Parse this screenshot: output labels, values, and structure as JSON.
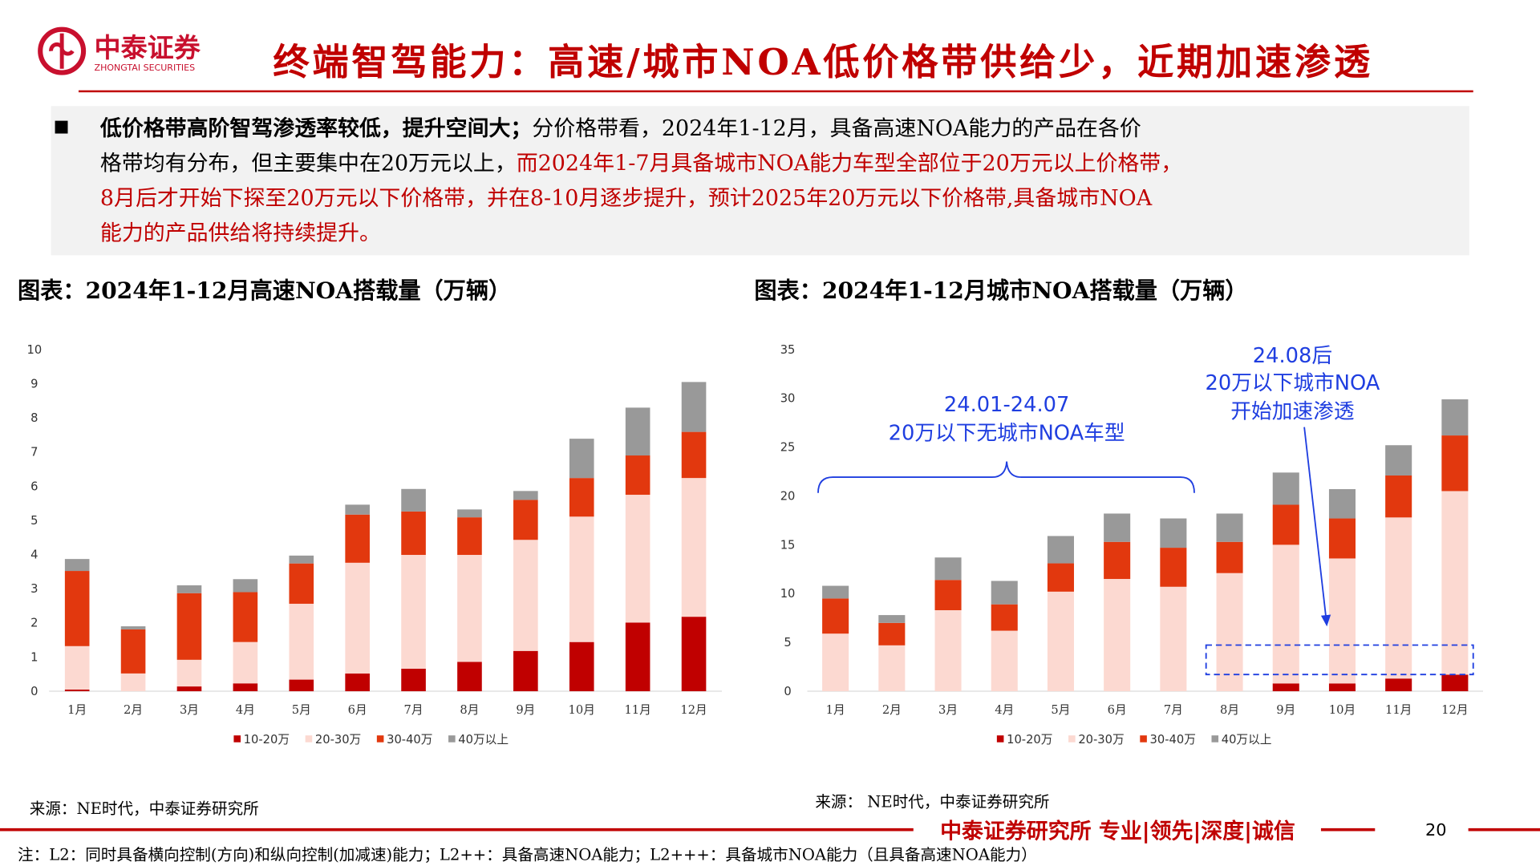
{
  "header": {
    "logo": "中泰证券",
    "logo_en": "ZHONGTAI SECURITIES",
    "title": "终端智驾能力：高速/城市NOA低价格带供给少，近期加速渗透"
  },
  "bullet": {
    "lines": [
      [
        {
          "text": "低价格带高阶智驾渗透率较低，提升空间大；",
          "color": "#000000",
          "bold": true
        },
        {
          "text": "分价格带看，2024年1-12月，具备高速NOA能力的产品在各价",
          "color": "#000000"
        }
      ],
      [
        {
          "text": "格带均有分布，但主要集中在20万元以上，",
          "color": "#000000"
        },
        {
          "text": "而2024年1-7月具备城市NOA能力车型全部位于20万元以上价格带，",
          "color": "#c00000"
        }
      ],
      [
        {
          "text": "8月后才开始下探至20万元以下价格带，并在8-10月逐步提升，预计2025年20万元以下价格带,具备城市NOA",
          "color": "#c00000"
        }
      ],
      [
        {
          "text": "能力的产品供给将持续提升。",
          "color": "#c00000"
        }
      ]
    ]
  },
  "chart_data": [
    {
      "type": "stacked_bar",
      "title": "图表：2024年1-12月高速NOA搭载量（万辆）",
      "source": "来源：NE时代，中泰证券研究所",
      "categories": [
        "1月",
        "2月",
        "3月",
        "4月",
        "5月",
        "6月",
        "7月",
        "8月",
        "9月",
        "10月",
        "11月",
        "12月"
      ],
      "series": [
        {
          "name": "10-20万",
          "color": "#c00000",
          "values": [
            0.05,
            0,
            0.14,
            0.23,
            0.34,
            0.52,
            0.66,
            0.86,
            1.18,
            1.44,
            2.01,
            2.18
          ]
        },
        {
          "name": "20-30万",
          "color": "#fcd9d1",
          "values": [
            1.27,
            0.52,
            0.78,
            1.21,
            2.22,
            3.24,
            3.33,
            3.13,
            3.25,
            3.67,
            3.74,
            4.06
          ]
        },
        {
          "name": "30-40万",
          "color": "#e2380e",
          "values": [
            2.2,
            1.29,
            1.95,
            1.46,
            1.18,
            1.41,
            1.27,
            1.1,
            1.17,
            1.13,
            1.15,
            1.35
          ]
        },
        {
          "name": "40万以上",
          "color": "#999999",
          "values": [
            0.35,
            0.09,
            0.23,
            0.38,
            0.23,
            0.29,
            0.66,
            0.23,
            0.26,
            1.15,
            1.4,
            1.46
          ]
        }
      ],
      "ylim": [
        0,
        10
      ],
      "yticks": [
        0,
        1,
        2,
        3,
        4,
        5,
        6,
        7,
        8,
        9,
        10
      ]
    },
    {
      "type": "stacked_bar",
      "title": "图表：2024年1-12月城市NOA搭载量（万辆）",
      "source": "来源： NE时代，中泰证券研究所",
      "categories": [
        "1月",
        "2月",
        "3月",
        "4月",
        "5月",
        "6月",
        "7月",
        "8月",
        "9月",
        "10月",
        "11月",
        "12月"
      ],
      "series": [
        {
          "name": "10-20万",
          "color": "#c00000",
          "values": [
            0,
            0,
            0,
            0,
            0,
            0,
            0,
            0,
            0.8,
            0.8,
            1.3,
            1.7
          ]
        },
        {
          "name": "20-30万",
          "color": "#fcd9d1",
          "values": [
            5.9,
            4.7,
            8.3,
            6.2,
            10.2,
            11.5,
            10.7,
            12.1,
            14.2,
            12.8,
            16.5,
            18.8
          ]
        },
        {
          "name": "30-40万",
          "color": "#e2380e",
          "values": [
            3.6,
            2.3,
            3.1,
            2.7,
            2.9,
            3.8,
            4.0,
            3.2,
            4.1,
            4.1,
            4.3,
            5.7
          ]
        },
        {
          "name": "40万以上",
          "color": "#999999",
          "values": [
            1.3,
            0.8,
            2.3,
            2.4,
            2.8,
            2.9,
            3.0,
            2.9,
            3.3,
            3.0,
            3.1,
            3.7
          ]
        }
      ],
      "ylim": [
        0,
        35
      ],
      "yticks": [
        0,
        5,
        10,
        15,
        20,
        25,
        30,
        35
      ],
      "annotations": [
        "24.01-24.07",
        "20万以下无城市NOA车型",
        "24.08后",
        "20万以下城市NOA",
        "开始加速渗透"
      ]
    }
  ],
  "footer": {
    "slogan": "中泰证券研究所 专业|领先|深度|诚信",
    "page": "20",
    "note": "注：L2：同时具备横向控制(方向)和纵向控制(加减速)能力；L2++：具备高速NOA能力；L2+++：具备城市NOA能力（且具备高速NOA能力）"
  }
}
